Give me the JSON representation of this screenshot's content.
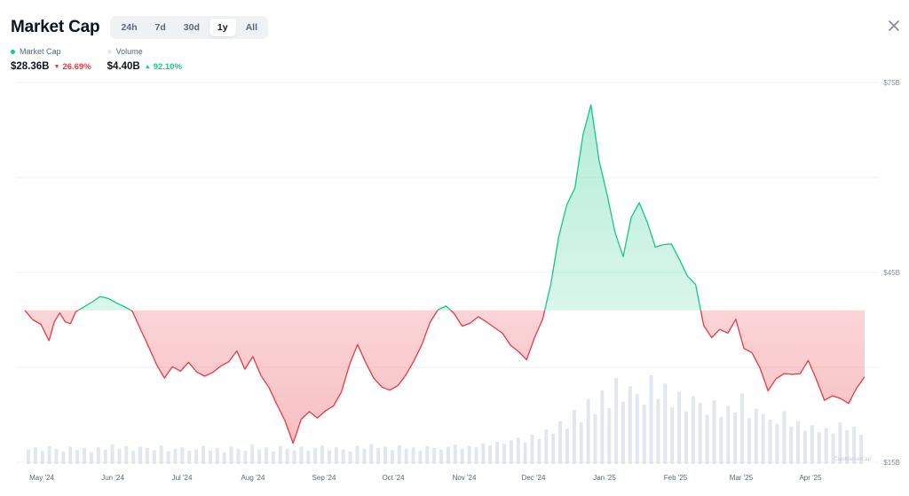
{
  "header": {
    "title": "Market Cap",
    "ranges": [
      "24h",
      "7d",
      "30d",
      "1y",
      "All"
    ],
    "active_range": "1y"
  },
  "legend": {
    "market_cap": {
      "label": "Market Cap",
      "value": "$28.36B",
      "change": "26.69%",
      "direction": "down",
      "color": "#16c784"
    },
    "volume": {
      "label": "Volume",
      "value": "$4.40B",
      "change": "92.10%",
      "direction": "up",
      "color": "#e6e9ee"
    }
  },
  "icons": {
    "close": "close-icon",
    "down": "triangle-down-icon",
    "up": "triangle-up-icon"
  },
  "colors": {
    "up": "#16c784",
    "down": "#ea3943",
    "volume": "#d5dbe7",
    "grid": "#eff2f5"
  },
  "watermark": "CoinMarketCap",
  "chart_data": {
    "type": "area",
    "title": "Market Cap",
    "ylabel": "",
    "xlabel": "",
    "y_ticks": [
      "$75B",
      "$45B",
      "$15B"
    ],
    "ylim": [
      15,
      75
    ],
    "baseline": 39,
    "x_ticks": [
      "May '24",
      "Jun '24",
      "Jul '24",
      "Aug '24",
      "Sep '24",
      "Oct '24",
      "Nov '24",
      "Dec '24",
      "Jan '25",
      "Feb '25",
      "Mar '25",
      "Apr '25"
    ],
    "series": [
      {
        "name": "Market Cap",
        "unit": "B USD",
        "points": [
          [
            0.0,
            39.0
          ],
          [
            0.3,
            37.5
          ],
          [
            0.6,
            36.8
          ],
          [
            0.9,
            34.2
          ],
          [
            1.1,
            37.2
          ],
          [
            1.3,
            38.6
          ],
          [
            1.5,
            37.2
          ],
          [
            1.7,
            36.9
          ],
          [
            1.9,
            38.8
          ],
          [
            2.1,
            39.3
          ],
          [
            2.5,
            40.3
          ],
          [
            2.8,
            41.2
          ],
          [
            3.1,
            40.9
          ],
          [
            3.4,
            40.2
          ],
          [
            3.7,
            39.6
          ],
          [
            4.0,
            38.9
          ],
          [
            4.3,
            36.1
          ],
          [
            4.6,
            33.4
          ],
          [
            4.9,
            30.5
          ],
          [
            5.2,
            28.3
          ],
          [
            5.5,
            30.1
          ],
          [
            5.8,
            29.4
          ],
          [
            6.1,
            30.8
          ],
          [
            6.4,
            29.3
          ],
          [
            6.7,
            28.6
          ],
          [
            7.0,
            29.2
          ],
          [
            7.3,
            30.2
          ],
          [
            7.6,
            30.9
          ],
          [
            7.9,
            32.6
          ],
          [
            8.2,
            29.7
          ],
          [
            8.5,
            31.7
          ],
          [
            8.8,
            28.7
          ],
          [
            9.1,
            26.8
          ],
          [
            9.4,
            24.1
          ],
          [
            9.7,
            21.5
          ],
          [
            10.0,
            18.0
          ],
          [
            10.3,
            21.8
          ],
          [
            10.6,
            23.0
          ],
          [
            10.9,
            22.0
          ],
          [
            11.2,
            23.1
          ],
          [
            11.5,
            23.9
          ],
          [
            11.8,
            26.1
          ],
          [
            12.1,
            30.4
          ],
          [
            12.4,
            33.6
          ],
          [
            12.7,
            30.8
          ],
          [
            13.0,
            28.3
          ],
          [
            13.3,
            26.9
          ],
          [
            13.6,
            26.4
          ],
          [
            13.9,
            27.1
          ],
          [
            14.2,
            28.8
          ],
          [
            14.5,
            31.0
          ],
          [
            14.8,
            33.6
          ],
          [
            15.1,
            37.1
          ],
          [
            15.4,
            39.1
          ],
          [
            15.7,
            39.7
          ],
          [
            16.0,
            38.5
          ],
          [
            16.3,
            36.5
          ],
          [
            16.6,
            37.0
          ],
          [
            16.9,
            38.0
          ],
          [
            17.2,
            37.2
          ],
          [
            17.5,
            36.3
          ],
          [
            17.8,
            35.4
          ],
          [
            18.1,
            33.5
          ],
          [
            18.4,
            32.5
          ],
          [
            18.7,
            31.2
          ],
          [
            19.0,
            34.7
          ],
          [
            19.3,
            37.6
          ],
          [
            19.6,
            43.1
          ],
          [
            19.9,
            50.7
          ],
          [
            20.2,
            55.7
          ],
          [
            20.5,
            58.3
          ],
          [
            20.8,
            66.7
          ],
          [
            21.1,
            71.5
          ],
          [
            21.4,
            62.7
          ],
          [
            21.7,
            57.3
          ],
          [
            22.0,
            51.3
          ],
          [
            22.3,
            47.5
          ],
          [
            22.6,
            53.7
          ],
          [
            22.9,
            56.0
          ],
          [
            23.2,
            52.9
          ],
          [
            23.5,
            49.0
          ],
          [
            23.8,
            49.4
          ],
          [
            24.1,
            49.5
          ],
          [
            24.4,
            47.0
          ],
          [
            24.7,
            44.4
          ],
          [
            25.0,
            43.1
          ],
          [
            25.3,
            36.6
          ],
          [
            25.6,
            34.7
          ],
          [
            25.9,
            36.0
          ],
          [
            26.2,
            35.4
          ],
          [
            26.5,
            37.6
          ],
          [
            26.8,
            33.0
          ],
          [
            27.1,
            32.3
          ],
          [
            27.4,
            29.9
          ],
          [
            27.7,
            26.3
          ],
          [
            28.0,
            28.2
          ],
          [
            28.3,
            29.0
          ],
          [
            28.6,
            28.9
          ],
          [
            28.9,
            29.0
          ],
          [
            29.2,
            31.1
          ],
          [
            29.5,
            28.1
          ],
          [
            29.8,
            24.8
          ],
          [
            30.1,
            25.5
          ],
          [
            30.4,
            25.1
          ],
          [
            30.7,
            24.3
          ],
          [
            31.0,
            26.7
          ],
          [
            31.3,
            28.5
          ]
        ]
      },
      {
        "name": "Volume",
        "unit": "B USD",
        "values": [
          2.1,
          2.4,
          1.9,
          2.6,
          2.2,
          1.8,
          2.5,
          2.0,
          2.3,
          1.7,
          2.4,
          2.1,
          2.8,
          2.2,
          2.6,
          1.9,
          2.5,
          2.3,
          2.0,
          2.7,
          1.8,
          2.2,
          2.4,
          1.9,
          2.1,
          2.6,
          2.0,
          2.3,
          1.7,
          2.5,
          2.2,
          1.9,
          2.8,
          2.1,
          2.4,
          1.8,
          2.6,
          2.2,
          2.0,
          2.5,
          1.9,
          2.3,
          2.7,
          2.0,
          2.4,
          2.1,
          1.8,
          2.6,
          2.2,
          2.9,
          2.3,
          2.5,
          2.0,
          2.7,
          2.2,
          2.4,
          1.9,
          2.6,
          2.3,
          2.1,
          2.5,
          2.8,
          2.2,
          2.6,
          2.4,
          3.0,
          2.7,
          3.2,
          2.9,
          3.4,
          3.8,
          3.1,
          4.2,
          3.6,
          5.0,
          4.4,
          6.2,
          5.1,
          7.8,
          6.0,
          9.4,
          7.2,
          10.6,
          8.1,
          12.4,
          9.0,
          11.2,
          10.1,
          8.6,
          12.8,
          9.4,
          11.6,
          8.2,
          10.4,
          7.6,
          9.8,
          8.8,
          7.1,
          9.2,
          6.8,
          8.4,
          7.4,
          10.2,
          6.6,
          8.0,
          7.2,
          6.4,
          5.8,
          7.6,
          5.4,
          6.2,
          4.8,
          5.6,
          4.6,
          5.2,
          4.4,
          6.0,
          4.9,
          5.4,
          4.2
        ]
      }
    ],
    "grid": true,
    "legend_position": "top-left"
  }
}
